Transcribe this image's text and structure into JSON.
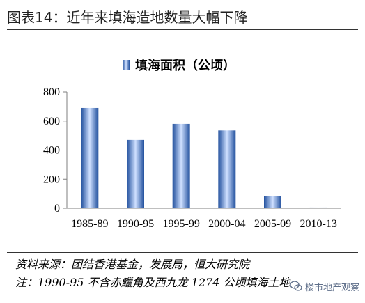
{
  "figure": {
    "title": "图表14：近年来填海造地数量大幅下降",
    "source": "资料来源：团结香港基金，发展局，恒大研究院",
    "footnote": "注：1990-95 不含赤鱲角及西九龙 1274 公顷填海土地",
    "watermark": "楼市地产观察",
    "watermark_icon": "chat-bubble-icon"
  },
  "chart_data": {
    "type": "bar",
    "categories": [
      "1985-89",
      "1990-95",
      "1995-99",
      "2000-04",
      "2005-09",
      "2010-13"
    ],
    "series": [
      {
        "name": "填海面积（公顷）",
        "values": [
          690,
          470,
          580,
          535,
          85,
          5
        ]
      }
    ],
    "yticks": [
      0,
      200,
      400,
      600,
      800
    ],
    "ylim": [
      0,
      800
    ],
    "legend_position": "top-left",
    "grid": false,
    "colors": {
      "bar_dark": "#1f4e9c",
      "bar_light": "#cfe0ff",
      "axis": "#7f7f7f"
    }
  }
}
